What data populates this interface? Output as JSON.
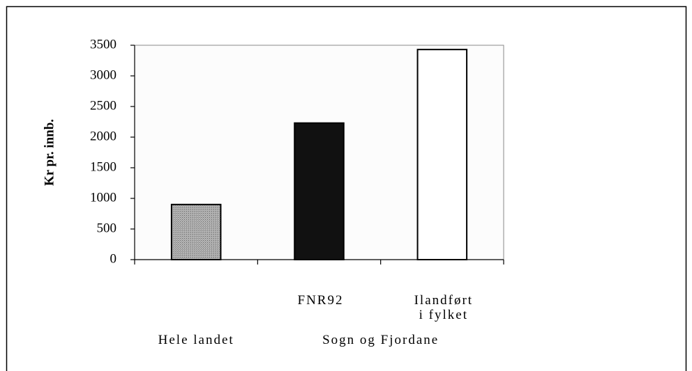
{
  "chart_data": {
    "type": "bar",
    "y_label": "Kr pr. innb.",
    "categories": [
      "Hele landet",
      "FNR92",
      "Ilandført\ni fylket"
    ],
    "group_label": "Sogn og Fjordane",
    "values": [
      900,
      2230,
      3430
    ],
    "colors": [
      "#a8a8a8",
      "#111111",
      "#ffffff"
    ],
    "ylim": [
      0,
      3500
    ],
    "yticks": [
      0,
      500,
      1000,
      1500,
      2000,
      2500,
      3000,
      3500
    ],
    "grid": false
  }
}
